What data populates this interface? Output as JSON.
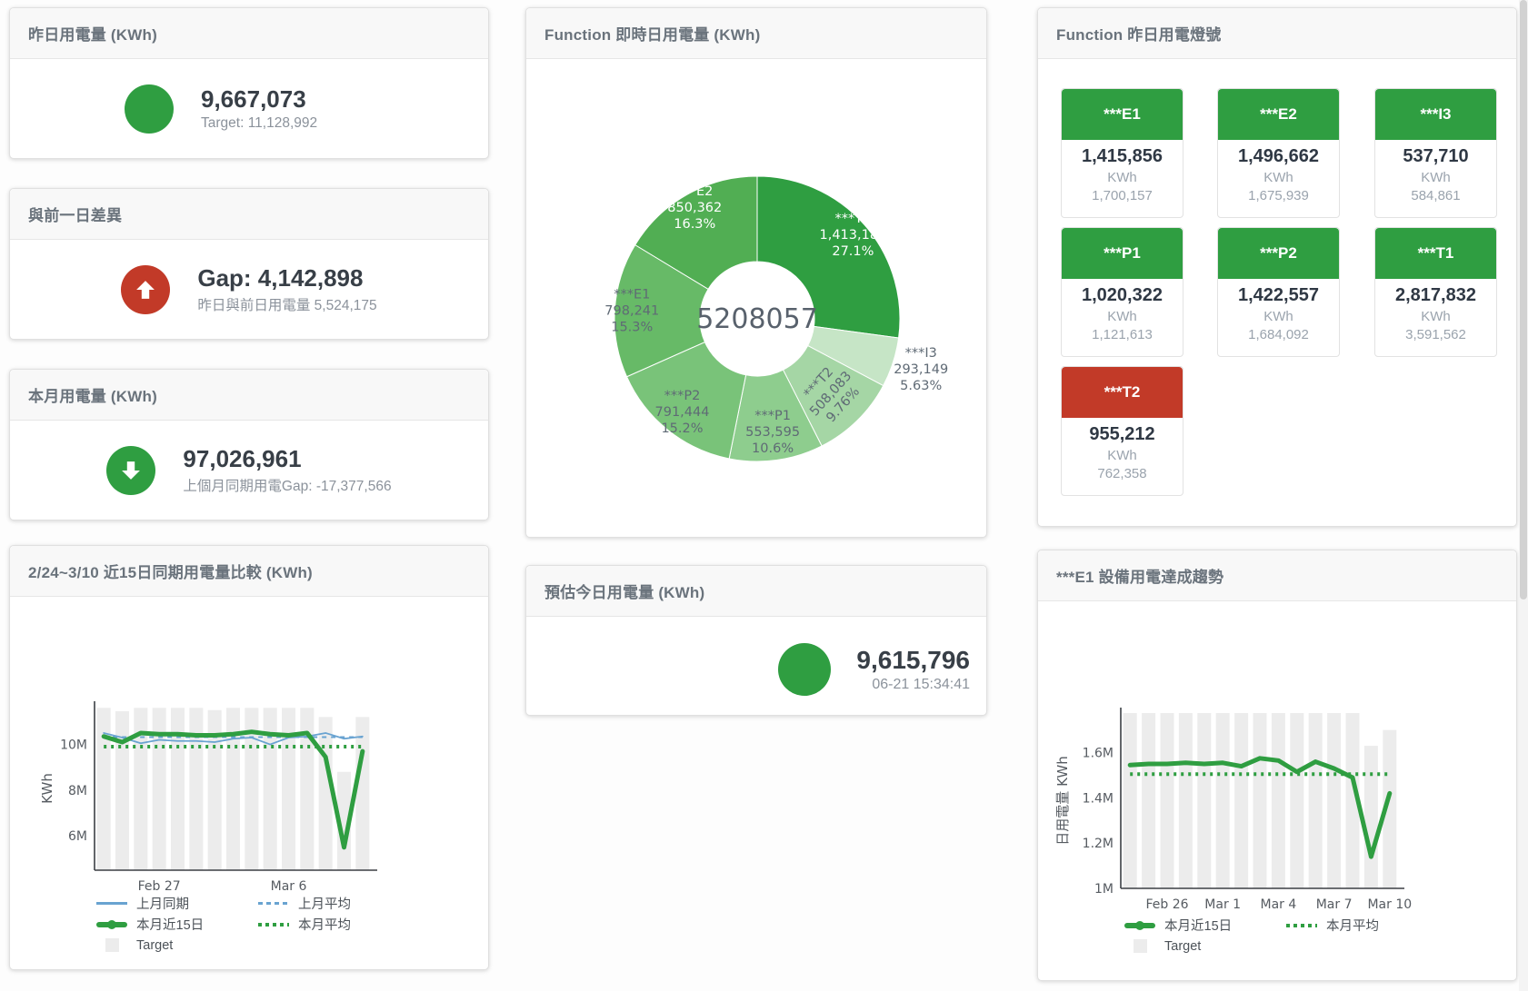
{
  "colors": {
    "green": "#2f9e41",
    "red": "#c23a28",
    "blue": "#69a3d1",
    "bar_gray": "#ececec"
  },
  "kpi_cards": [
    {
      "title": "昨日用電量 (KWh)",
      "indicator": "circle",
      "value": "9,667,073",
      "subtext": "Target: 11,128,992"
    },
    {
      "title": "與前一日差異",
      "indicator": "arrow-up",
      "value": "Gap: 4,142,898",
      "subtext": "昨日與前日用電量 5,524,175"
    },
    {
      "title": "本月用電量 (KWh)",
      "indicator": "arrow-down",
      "value": "97,026,961",
      "subtext": "上個月同期用電Gap: -17,377,566"
    }
  ],
  "donut_card": {
    "title": "Function 即時日用電量 (KWh)",
    "center_label": "5208057"
  },
  "estimate_card": {
    "title": "預估今日用電量 (KWh)",
    "value": "9,615,796",
    "subtext": "06-21 15:34:41"
  },
  "lights_card": {
    "title": "Function 昨日用電燈號",
    "unit": "KWh",
    "tiles": [
      {
        "label": "***E1",
        "value": "1,415,856",
        "unit": "KWh",
        "target": "1,700,157",
        "status": "green"
      },
      {
        "label": "***E2",
        "value": "1,496,662",
        "unit": "KWh",
        "target": "1,675,939",
        "status": "green"
      },
      {
        "label": "***I3",
        "value": "537,710",
        "unit": "KWh",
        "target": "584,861",
        "status": "green"
      },
      {
        "label": "***P1",
        "value": "1,020,322",
        "unit": "KWh",
        "target": "1,121,613",
        "status": "green"
      },
      {
        "label": "***P2",
        "value": "1,422,557",
        "unit": "KWh",
        "target": "1,684,092",
        "status": "green"
      },
      {
        "label": "***T1",
        "value": "2,817,832",
        "unit": "KWh",
        "target": "3,591,562",
        "status": "green"
      },
      {
        "label": "***T2",
        "value": "955,212",
        "unit": "KWh",
        "target": "762,358",
        "status": "red"
      }
    ]
  },
  "compare_card": {
    "title": "2/24~3/10 近15日同期用電量比較 (KWh)"
  },
  "trend_card": {
    "title": "***E1 設備用電達成趨勢"
  },
  "chart_data": [
    {
      "type": "pie",
      "title": "Function 即時日用電量 (KWh)",
      "center_label": "5208057",
      "legend_position": "none",
      "slices": [
        {
          "name": "***T1",
          "value": 1413183,
          "display": "1,413,183",
          "pct": "27.1%",
          "color": "#2f9e41",
          "text": "#ffffff",
          "label_r": 140
        },
        {
          "name": "***I3",
          "value": 293149,
          "display": "293,149",
          "pct": "5.63%",
          "color": "#c6e5c6",
          "text": "#5f6a75",
          "outside": true
        },
        {
          "name": "***T2",
          "value": 508083,
          "display": "508,083",
          "pct": "9.76%",
          "color": "#a5d6a5",
          "text": "#5f6a75",
          "label_r": 116,
          "rotate": -48
        },
        {
          "name": "***P1",
          "value": 553595,
          "display": "553,595",
          "pct": "10.6%",
          "color": "#8ecd8e",
          "text": "#5f6a75",
          "label_r": 126
        },
        {
          "name": "***P2",
          "value": 791444,
          "display": "791,444",
          "pct": "15.2%",
          "color": "#79c379",
          "text": "#5f6a75",
          "label_r": 132
        },
        {
          "name": "***E1",
          "value": 798241,
          "display": "798,241",
          "pct": "15.3%",
          "color": "#67ba67",
          "text": "#5f6a75",
          "label_r": 138
        },
        {
          "name": "***E2",
          "value": 850362,
          "display": "850,362",
          "pct": "16.3%",
          "color": "#51ae53",
          "text": "#ffffff",
          "label_r": 140
        }
      ]
    },
    {
      "type": "line+bar",
      "title": "2/24~3/10 近15日同期用電量比較 (KWh)",
      "ylabel": "KWh",
      "ylim": [
        4500000,
        11650000
      ],
      "grid": false,
      "yticks": [
        {
          "v": 6000000,
          "label": "6M"
        },
        {
          "v": 8000000,
          "label": "8M"
        },
        {
          "v": 10000000,
          "label": "10M"
        }
      ],
      "xticks": [
        {
          "i": 3,
          "label": "Feb 27"
        },
        {
          "i": 10,
          "label": "Mar 6"
        }
      ],
      "bar_series": {
        "name": "Target",
        "color": "#ececec",
        "values": [
          11600000,
          11450000,
          11600000,
          11600000,
          11600000,
          11600000,
          11500000,
          11600000,
          11600000,
          11600000,
          11600000,
          11600000,
          11200000,
          8800000,
          11200000
        ]
      },
      "line_series": [
        {
          "name": "上月同期",
          "color": "#69a3d1",
          "width": 1.8,
          "dash": null,
          "values": [
            10500000,
            10300000,
            10050000,
            10200000,
            10150000,
            10150000,
            10100000,
            10250000,
            10300000,
            10000000,
            10300000,
            10350000,
            10500000,
            10250000,
            10350000
          ]
        },
        {
          "name": "上月平均",
          "color": "#69a3d1",
          "width": 2,
          "dash": "5 5",
          "values": [
            10320000,
            10320000,
            10320000,
            10320000,
            10320000,
            10320000,
            10320000,
            10320000,
            10320000,
            10320000,
            10320000,
            10320000,
            10320000,
            10320000,
            10320000
          ]
        },
        {
          "name": "本月近15日",
          "color": "#2f9e41",
          "width": 5,
          "dash": null,
          "values": [
            10350000,
            10100000,
            10500000,
            10450000,
            10450000,
            10400000,
            10400000,
            10450000,
            10550000,
            10450000,
            10400000,
            10500000,
            9450000,
            5500000,
            9700000
          ]
        },
        {
          "name": "本月平均",
          "color": "#2f9e41",
          "width": 4,
          "dash": "3 5",
          "values": [
            9900000,
            9900000,
            9900000,
            9900000,
            9900000,
            9900000,
            9900000,
            9900000,
            9900000,
            9900000,
            9900000,
            9900000,
            9900000,
            9900000,
            9900000
          ]
        }
      ],
      "legend": [
        {
          "label": "上月同期",
          "swatch": "line-blue"
        },
        {
          "label": "上月平均",
          "swatch": "dash-blue"
        },
        {
          "label": "本月近15日",
          "swatch": "thick-green"
        },
        {
          "label": "本月平均",
          "swatch": "dot-green"
        },
        {
          "label": "Target",
          "swatch": "box-gray"
        }
      ]
    },
    {
      "type": "line+bar",
      "title": "***E1 設備用電達成趨勢",
      "ylabel": "日用電量 KWh",
      "ylim": [
        1000000,
        1775000
      ],
      "grid": false,
      "yticks": [
        {
          "v": 1000000,
          "label": "1M"
        },
        {
          "v": 1200000,
          "label": "1.2M"
        },
        {
          "v": 1400000,
          "label": "1.4M"
        },
        {
          "v": 1600000,
          "label": "1.6M"
        }
      ],
      "xticks": [
        {
          "i": 2,
          "label": "Feb 26"
        },
        {
          "i": 5,
          "label": "Mar 1"
        },
        {
          "i": 8,
          "label": "Mar 4"
        },
        {
          "i": 11,
          "label": "Mar 7"
        },
        {
          "i": 14,
          "label": "Mar 10"
        }
      ],
      "bar_series": {
        "name": "Target",
        "color": "#ececec",
        "values": [
          1775000,
          1775000,
          1775000,
          1775000,
          1775000,
          1775000,
          1775000,
          1775000,
          1775000,
          1775000,
          1775000,
          1775000,
          1775000,
          1630000,
          1700000
        ]
      },
      "line_series": [
        {
          "name": "本月近15日",
          "color": "#2f9e41",
          "width": 5,
          "dash": null,
          "values": [
            1545000,
            1550000,
            1550000,
            1555000,
            1550000,
            1555000,
            1540000,
            1575000,
            1565000,
            1515000,
            1560000,
            1530000,
            1490000,
            1140000,
            1420000
          ]
        },
        {
          "name": "本月平均",
          "color": "#2f9e41",
          "width": 4,
          "dash": "3 5",
          "values": [
            1505000,
            1505000,
            1505000,
            1505000,
            1505000,
            1505000,
            1505000,
            1505000,
            1505000,
            1505000,
            1505000,
            1505000,
            1505000,
            1505000,
            1505000
          ]
        }
      ],
      "legend": [
        {
          "label": "本月近15日",
          "swatch": "thick-green"
        },
        {
          "label": "本月平均",
          "swatch": "dot-green"
        },
        {
          "label": "Target",
          "swatch": "box-gray"
        }
      ]
    }
  ]
}
